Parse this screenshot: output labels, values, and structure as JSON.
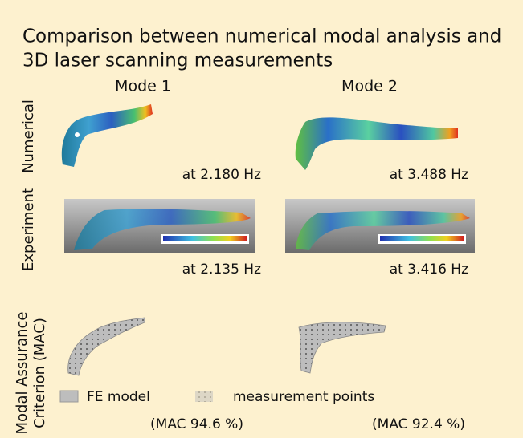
{
  "title": [
    "Comparison between numerical modal analysis and",
    "3D laser scanning measurements"
  ],
  "columns": [
    "Mode 1",
    "Mode 2"
  ],
  "rows": [
    {
      "label": [
        "Numerical"
      ],
      "cells": [
        "at 2.180 Hz",
        "at 3.488 Hz"
      ]
    },
    {
      "label": [
        "Experiment"
      ],
      "cells": [
        "at 2.135 Hz",
        "at 3.416 Hz"
      ]
    },
    {
      "label": [
        "Modal Assurance",
        "Criterion (MAC)"
      ],
      "cells": [
        "(MAC 94.6 %)",
        "(MAC 92.4 %)"
      ]
    }
  ],
  "legend": [
    "FE model",
    "measurement points"
  ]
}
